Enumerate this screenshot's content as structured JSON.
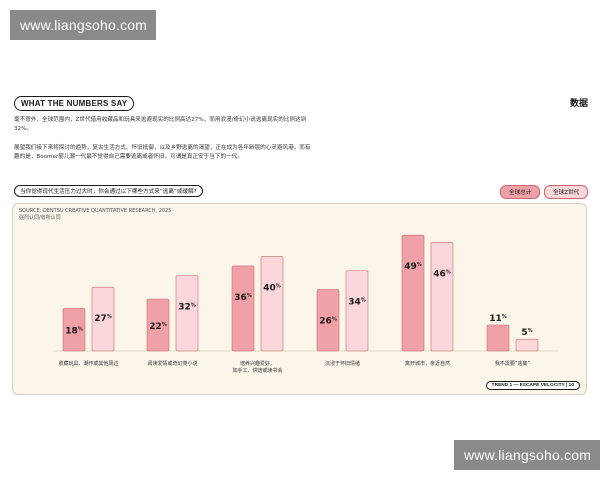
{
  "watermark": "www.liangsoho.com",
  "header": {
    "tag": "WHAT THE NUMBERS SAY",
    "right_title": "数据"
  },
  "paragraphs": [
    "毫不意外，全球范围内，Z世代借用收藏品和玩具来逃避现实的比例高达27%，而用浪漫/奇幻小说逃离现实的比例达到32%。",
    "展望我们接下来将探讨的趋势，复古生活方式、怀旧抵御，以及乡野逃离的渴望，正在成为各年龄层的心灵避风港。而有趣的是，Boomer婴儿潮一代最不觉得自己需要逃离或者怀旧，可谓是真正安于当下的一代。"
  ],
  "question": "当你觉得现代生活压力过大时，你会通过以下哪些方式来“逃离”或缓解?",
  "legend": [
    "全球总计",
    "全球Z世代"
  ],
  "colors": {
    "series_a": "#f0a1a8",
    "series_b": "#fbd7db",
    "stroke": "#c96a72"
  },
  "chart_data": {
    "type": "bar",
    "source_lines": [
      "SOURCE: DENTSU CREATIVE QUANTITATIVE RESEARCH, 2025",
      "强烈认同/有所认同"
    ],
    "categories": [
      [
        "收藏玩具、潮作或其他周边"
      ],
      [
        "阅读爱情或奇幻类小说"
      ],
      [
        "培养兴趣爱好，",
        "如手工、烘焙或读书会"
      ],
      [
        "沉浸于怀旧情绪"
      ],
      [
        "离开城市，亲近自然"
      ],
      [
        "我不需要“逃离”"
      ]
    ],
    "series": [
      {
        "name": "全球总计",
        "values": [
          18,
          22,
          36,
          26,
          49,
          11
        ]
      },
      {
        "name": "全球Z世代",
        "values": [
          27,
          32,
          40,
          34,
          46,
          5
        ]
      }
    ],
    "ylim": [
      0,
      55
    ],
    "grid": false,
    "legend_position": "top-right"
  },
  "footer": "TREND 1 — ESCAPE VELOCITY",
  "page_number": "10"
}
